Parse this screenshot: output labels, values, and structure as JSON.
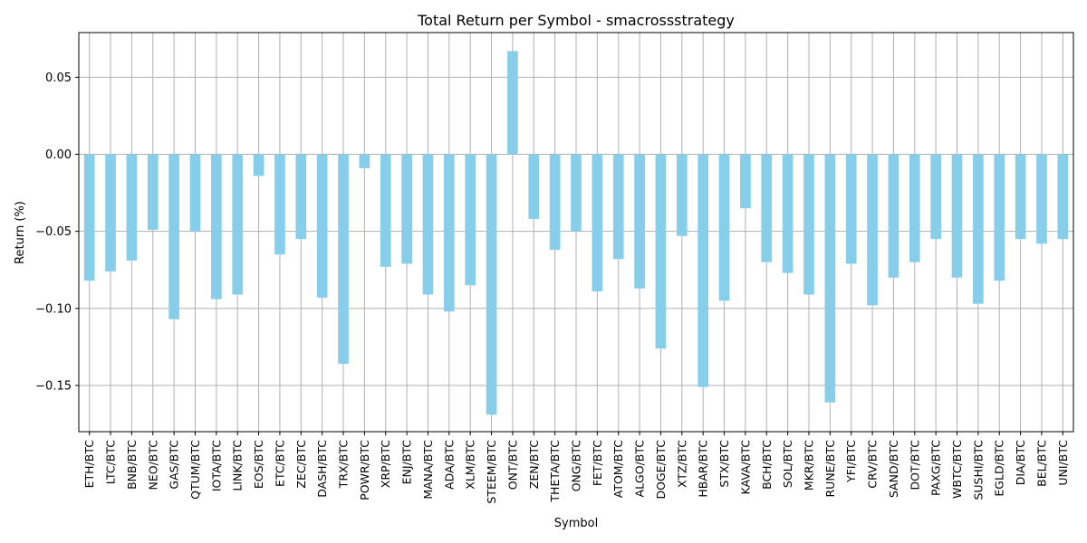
{
  "chart_data": {
    "type": "bar",
    "title": "Total Return per Symbol - smacrossstrategy",
    "xlabel": "Symbol",
    "ylabel": "Return (%)",
    "ylim": [
      -0.18,
      0.079
    ],
    "yticks": [
      0.05,
      0.0,
      -0.05,
      -0.1,
      -0.15
    ],
    "ytick_labels": [
      "0.05",
      "0.00",
      "−0.05",
      "−0.10",
      "−0.15"
    ],
    "grid": true,
    "legend": "none",
    "bar_color": "#87ceeb",
    "categories": [
      "ETH/BTC",
      "LTC/BTC",
      "BNB/BTC",
      "NEO/BTC",
      "GAS/BTC",
      "QTUM/BTC",
      "IOTA/BTC",
      "LINK/BTC",
      "EOS/BTC",
      "ETC/BTC",
      "ZEC/BTC",
      "DASH/BTC",
      "TRX/BTC",
      "POWR/BTC",
      "XRP/BTC",
      "ENJ/BTC",
      "MANA/BTC",
      "ADA/BTC",
      "XLM/BTC",
      "STEEM/BTC",
      "ONT/BTC",
      "ZEN/BTC",
      "THETA/BTC",
      "ONG/BTC",
      "FET/BTC",
      "ATOM/BTC",
      "ALGO/BTC",
      "DOGE/BTC",
      "XTZ/BTC",
      "HBAR/BTC",
      "STX/BTC",
      "KAVA/BTC",
      "BCH/BTC",
      "SOL/BTC",
      "MKR/BTC",
      "RUNE/BTC",
      "YFI/BTC",
      "CRV/BTC",
      "SAND/BTC",
      "DOT/BTC",
      "PAXG/BTC",
      "WBTC/BTC",
      "SUSHI/BTC",
      "EGLD/BTC",
      "DIA/BTC",
      "BEL/BTC",
      "UNI/BTC"
    ],
    "values": [
      -0.082,
      -0.076,
      -0.069,
      -0.049,
      -0.107,
      -0.05,
      -0.094,
      -0.091,
      -0.014,
      -0.065,
      -0.055,
      -0.093,
      -0.136,
      -0.009,
      -0.073,
      -0.071,
      -0.091,
      -0.102,
      -0.085,
      -0.169,
      0.067,
      -0.042,
      -0.062,
      -0.05,
      -0.089,
      -0.068,
      -0.087,
      -0.126,
      -0.053,
      -0.151,
      -0.095,
      -0.035,
      -0.07,
      -0.077,
      -0.091,
      -0.161,
      -0.071,
      -0.098,
      -0.08,
      -0.07,
      -0.055,
      -0.08,
      -0.097,
      -0.082,
      -0.055,
      -0.058,
      -0.055
    ]
  }
}
